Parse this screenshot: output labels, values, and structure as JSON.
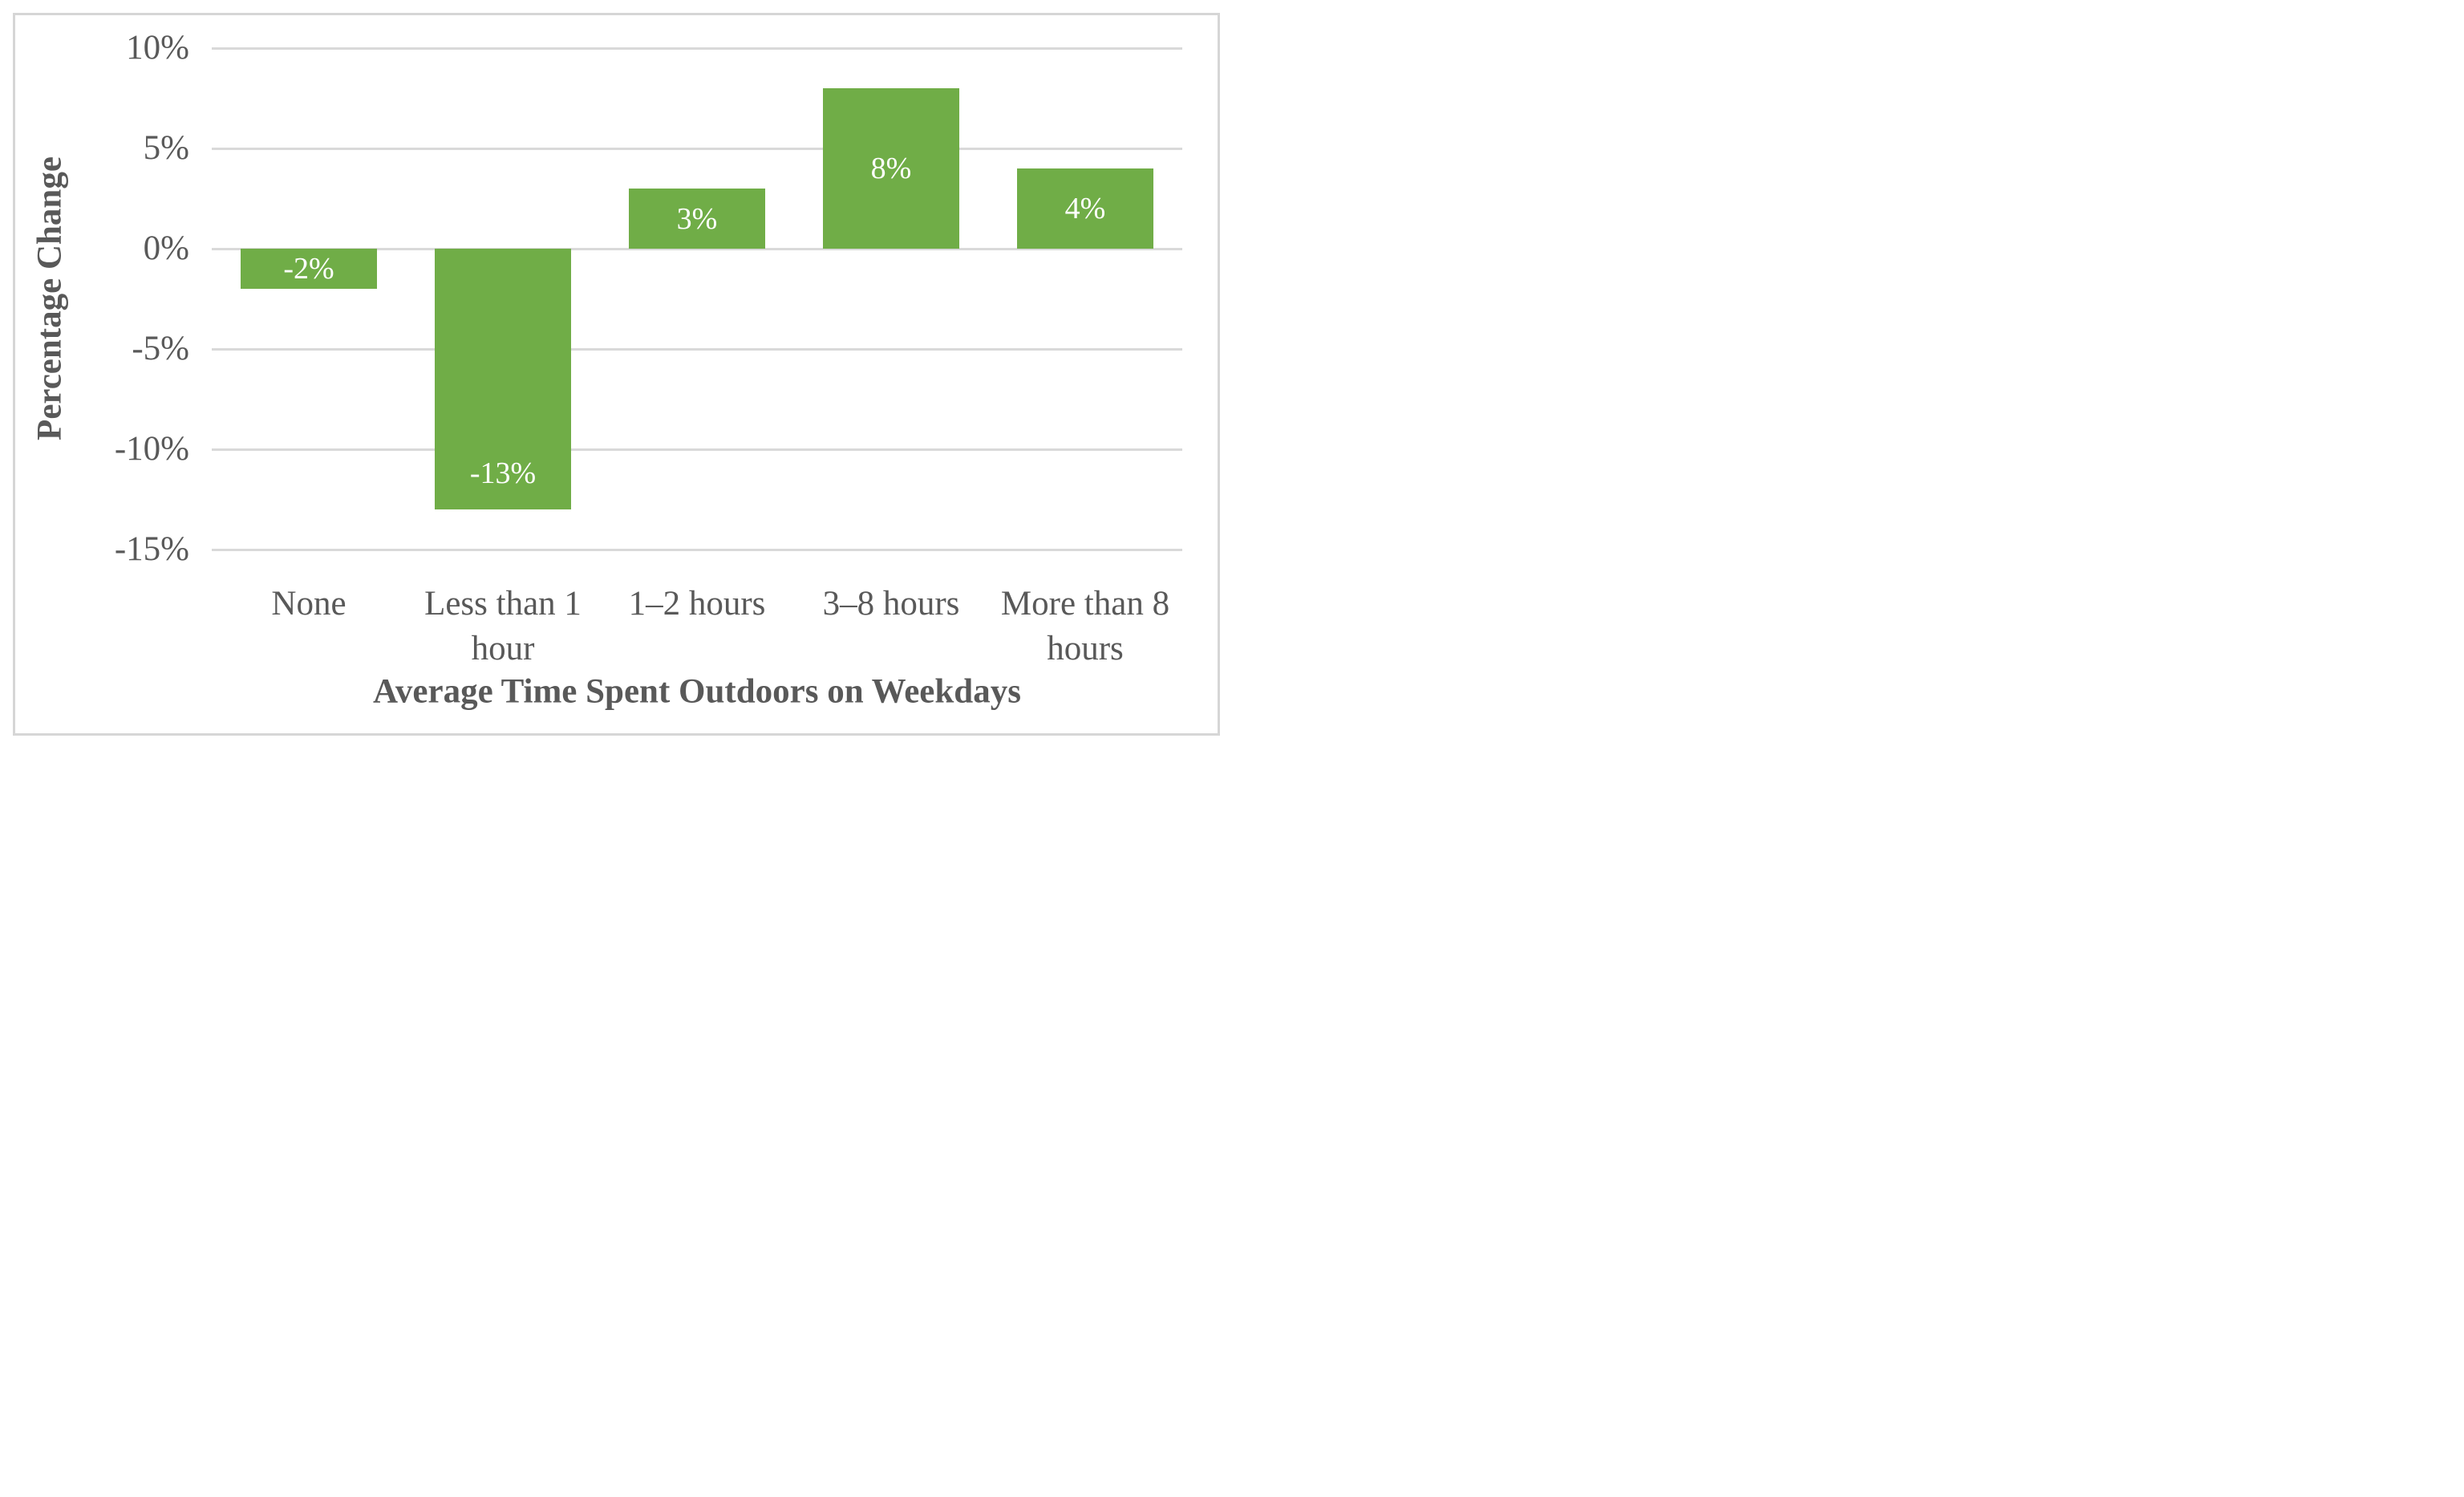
{
  "chart_data": {
    "type": "bar",
    "title": "",
    "categories": [
      "None",
      "Less than 1 hour",
      "1–2 hours",
      "3–8 hours",
      "More than 8 hours"
    ],
    "values": [
      -2,
      -13,
      3,
      8,
      4
    ],
    "point_labels": [
      "-2%",
      "-13%",
      "3%",
      "8%",
      "4%"
    ],
    "label_placement": [
      "center",
      "end",
      "center",
      "center",
      "center"
    ],
    "xlabel": "Average Time Spent Outdoors on Weekdays",
    "ylabel": "Percentage Change",
    "ylim": [
      -15,
      10
    ],
    "ytick_values": [
      10,
      5,
      0,
      -5,
      -10,
      -15
    ],
    "ytick_labels": [
      "10%",
      "5%",
      "0%",
      "-5%",
      "-10%",
      "-15%"
    ],
    "grid": true,
    "legend": "none",
    "colors": {
      "bar": "#70AD47",
      "bar_label": "#FFFFFF",
      "axis_text": "#595959",
      "gridline": "#D9D9D9",
      "frame_border": "#D6D6D6",
      "background": "#FFFFFF"
    }
  }
}
